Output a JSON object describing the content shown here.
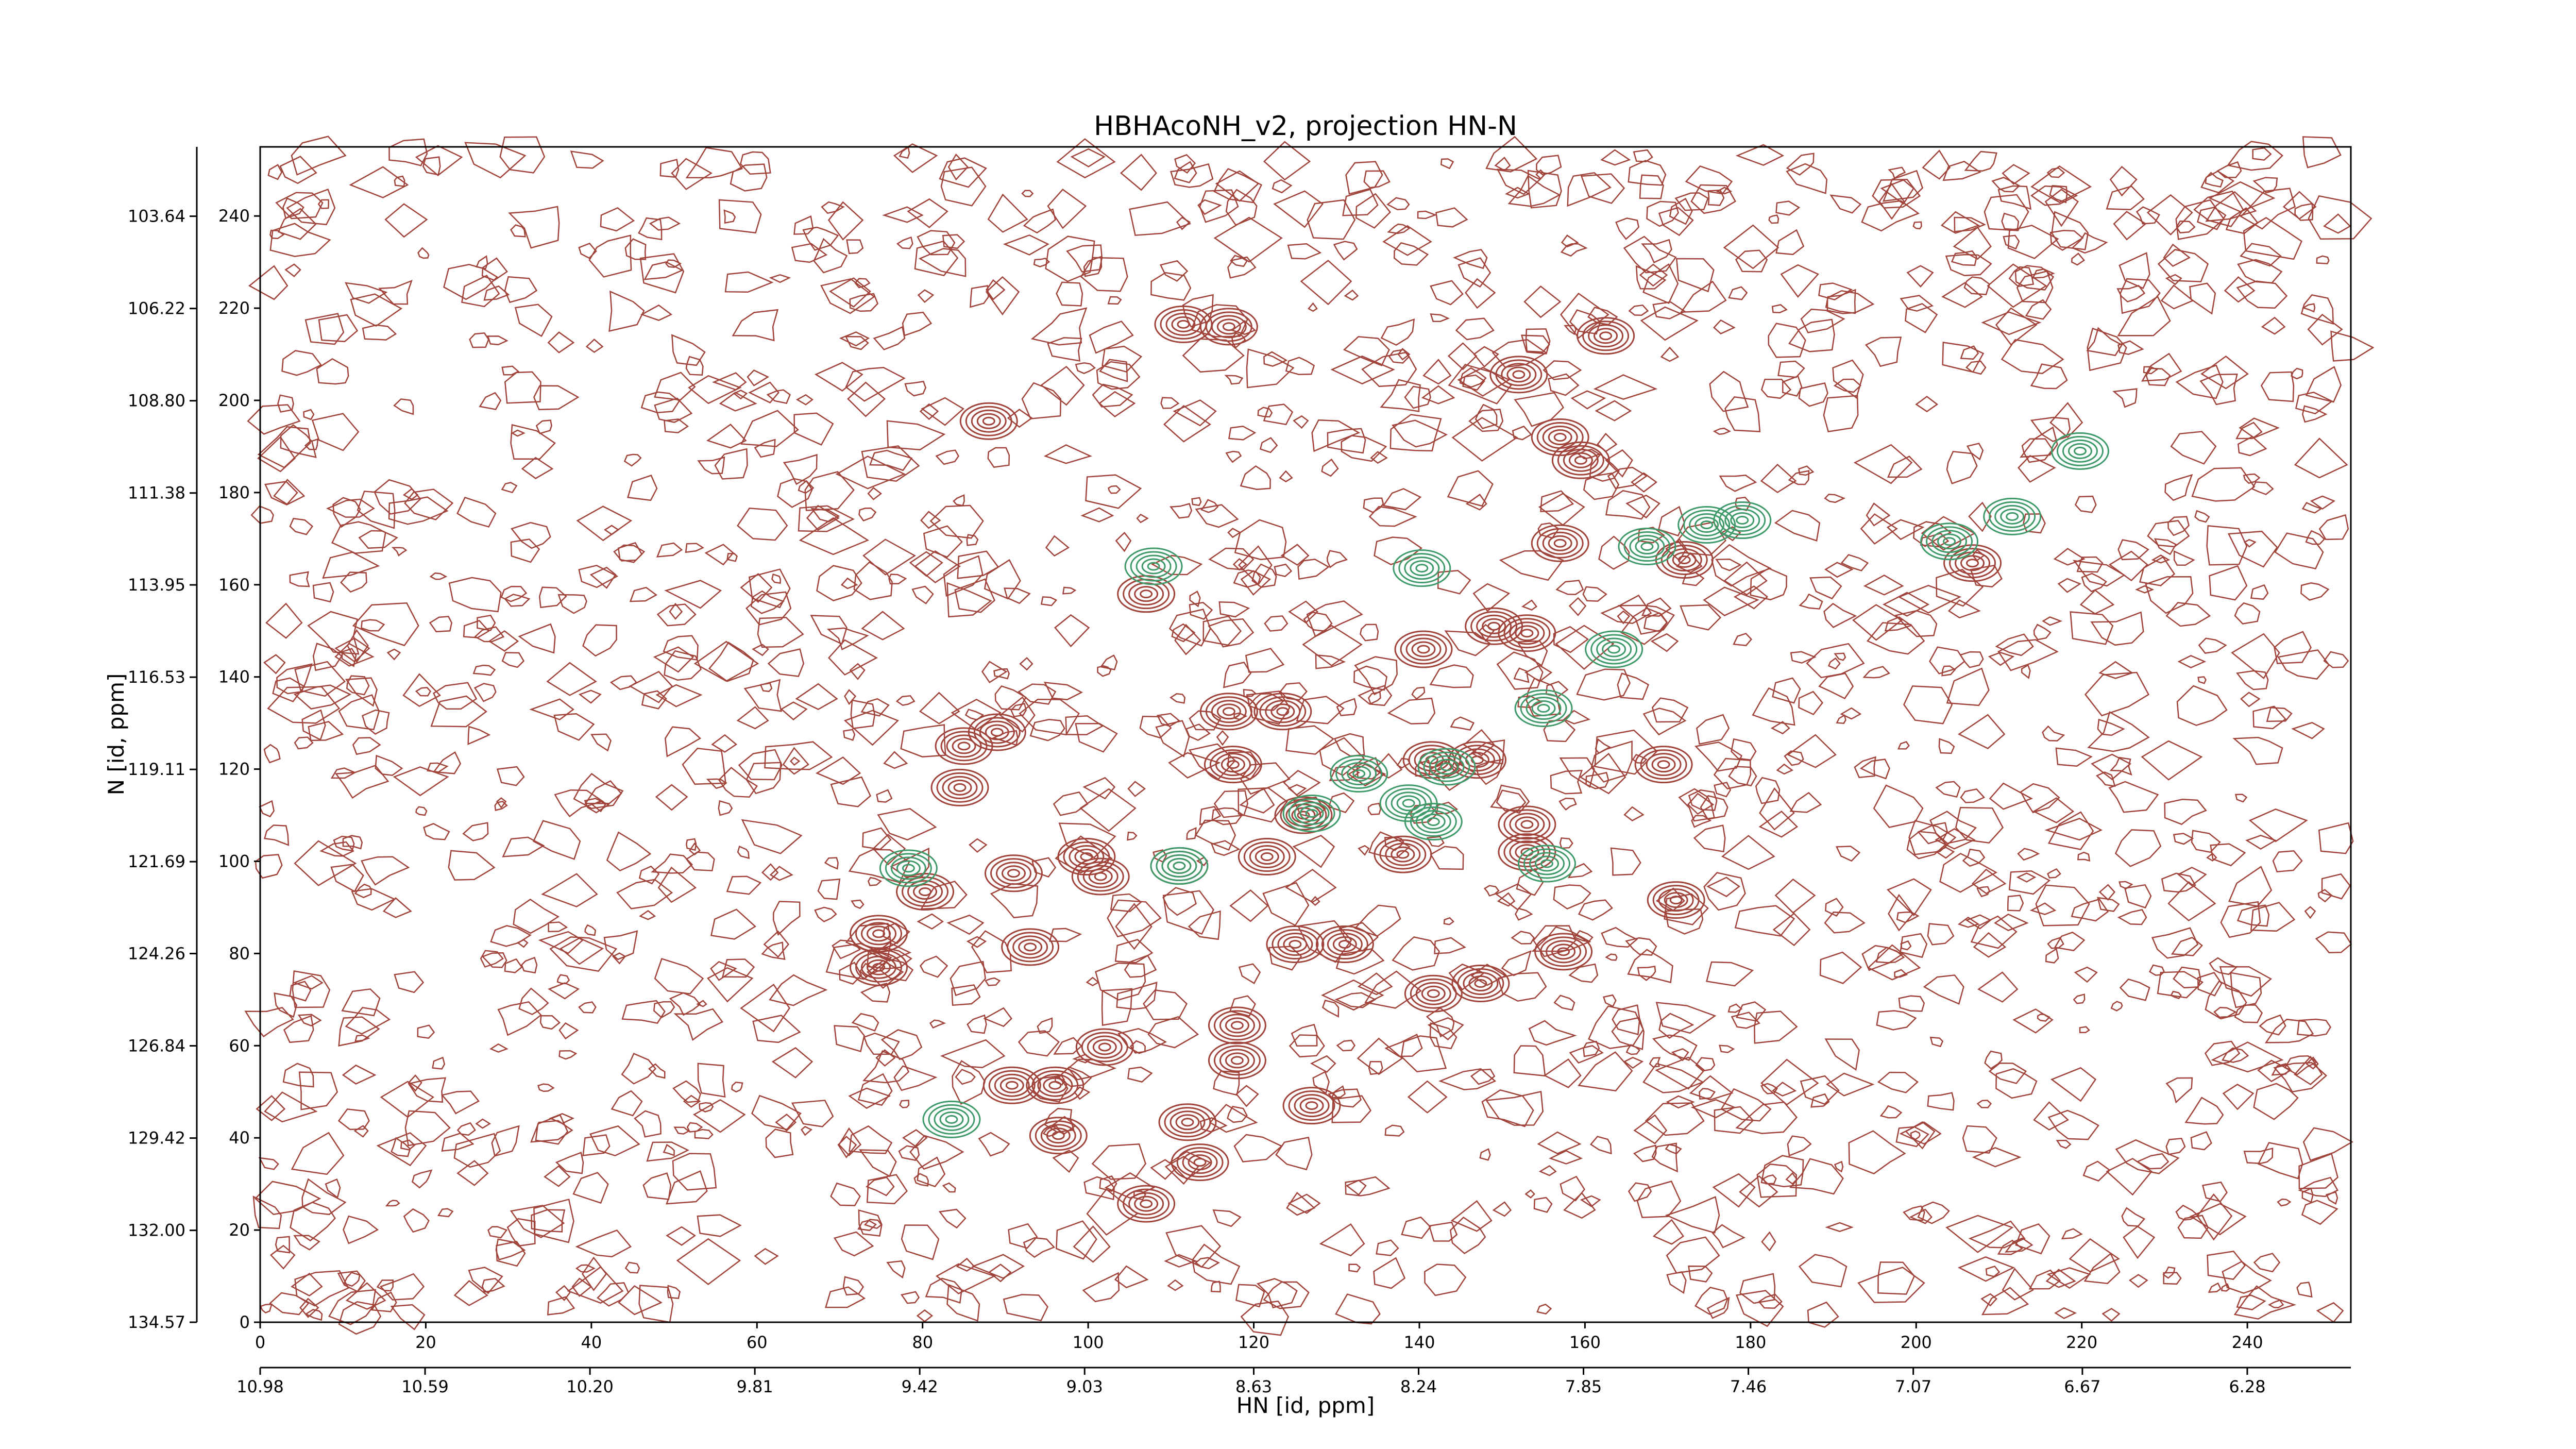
{
  "chart_data": {
    "type": "contour",
    "title": "HBHAcoNH_v2, projection HN-N",
    "x_label": "HN [id, ppm]",
    "y_label": "N [id, ppm]",
    "xlim": [
      0,
      252.5
    ],
    "ylim": [
      0,
      255
    ],
    "xticks": [
      0,
      20,
      40,
      60,
      80,
      100,
      120,
      140,
      160,
      180,
      200,
      220,
      240
    ],
    "yticks": [
      0,
      20,
      40,
      60,
      80,
      100,
      120,
      140,
      160,
      180,
      200,
      220,
      240
    ],
    "x2lim": [
      10.98,
      6.035
    ],
    "x2ticks": [
      10.98,
      10.59,
      {
        "value": 10.2,
        "label": "10.20"
      },
      9.81,
      9.42,
      9.03,
      8.63,
      8.24,
      7.85,
      7.46,
      7.07,
      6.67,
      6.28
    ],
    "y2lim": [
      134.57,
      101.7
    ],
    "y2ticks": [
      134.57,
      {
        "value": 132,
        "label": "132.00"
      },
      129.42,
      126.84,
      124.26,
      121.69,
      119.11,
      116.53,
      113.95,
      111.38,
      {
        "value": 108.8,
        "label": "108.80"
      },
      106.22,
      103.64
    ],
    "series": [
      {
        "color": "#a0433a",
        "x": [
          111.5,
          117,
          88,
          152,
          162.5,
          157,
          159.5,
          157,
          172,
          206.8,
          107,
          140.5,
          149,
          153,
          117,
          123.5,
          117.5,
          141.5,
          147,
          169.5,
          85,
          89,
          84.5,
          126,
          121.6,
          138,
          153,
          153,
          111,
          99.8,
          91,
          80.3,
          131,
          125,
          141.7,
          147.4,
          157.4,
          171,
          74.7,
          74.7,
          93,
          118,
          118,
          102,
          90.8,
          96,
          96.4,
          112,
          127,
          113.5,
          107,
          101.5
        ],
        "y": [
          216.5,
          216,
          195.5,
          205.6,
          214,
          192,
          187,
          169,
          165.4,
          164.7,
          158,
          146,
          151,
          149.5,
          132.5,
          132.5,
          121,
          122,
          122,
          121,
          125,
          128,
          116,
          110,
          101,
          101.5,
          108,
          102,
          99,
          101,
          97.4,
          93.4,
          82,
          82,
          71.3,
          73.5,
          80.4,
          91.6,
          84.3,
          77,
          81.4,
          56.8,
          64.4,
          59.7,
          51.4,
          51.4,
          40.5,
          43.4,
          47,
          34.7,
          25.7,
          96.7
        ]
      },
      {
        "color": "#3f9a6a",
        "x": [
          167.5,
          174.7,
          179,
          211.6,
          204,
          140.3,
          163.5,
          155,
          155.4,
          78.3,
          219.8,
          107.9,
          132.7,
          127,
          143.3,
          138.7,
          141.7,
          111,
          83.5
        ],
        "y": [
          168.3,
          173,
          174,
          174.8,
          169.4,
          163.6,
          146,
          133.2,
          99.5,
          98.5,
          189,
          164,
          119,
          110.4,
          120.5,
          112.6,
          108.6,
          99,
          44
        ]
      }
    ]
  }
}
